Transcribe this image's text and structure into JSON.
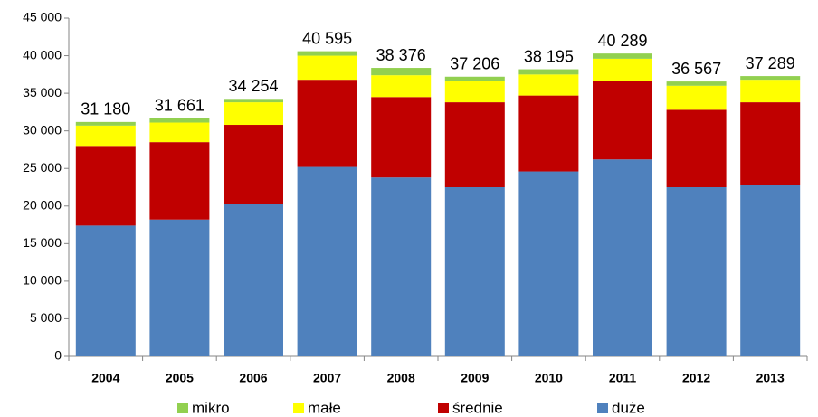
{
  "chart_data": {
    "type": "stacked_bar",
    "categories": [
      "2004",
      "2005",
      "2006",
      "2007",
      "2008",
      "2009",
      "2010",
      "2011",
      "2012",
      "2013"
    ],
    "series": [
      {
        "name": "duże",
        "color": "#4f81bd",
        "values": [
          17400,
          18200,
          20300,
          25200,
          23800,
          22500,
          24600,
          26200,
          22500,
          22800
        ]
      },
      {
        "name": "średnie",
        "color": "#c00000",
        "values": [
          10600,
          10300,
          10500,
          11600,
          10700,
          11300,
          10100,
          10400,
          10300,
          11000
        ]
      },
      {
        "name": "małe",
        "color": "#ffff00",
        "values": [
          2700,
          2600,
          3000,
          3200,
          2900,
          2800,
          2800,
          3000,
          3200,
          3000
        ]
      },
      {
        "name": "mikro",
        "color": "#92d050",
        "values": [
          480,
          561,
          454,
          595,
          976,
          606,
          695,
          689,
          567,
          489
        ]
      }
    ],
    "totals": [
      31180,
      31661,
      34254,
      40595,
      38376,
      37206,
      38195,
      40289,
      36567,
      37289
    ],
    "total_labels": [
      "31 180",
      "31 661",
      "34 254",
      "40 595",
      "38 376",
      "37 206",
      "38 195",
      "40 289",
      "36 567",
      "37 289"
    ],
    "ylim": [
      0,
      45000
    ],
    "yticks": [
      0,
      {
        "value": 5000,
        "label": "5 000"
      },
      {
        "value": 10000,
        "label": "10 000"
      },
      {
        "value": 15000,
        "label": "15 000"
      },
      {
        "value": 20000,
        "label": "20 000"
      },
      {
        "value": 25000,
        "label": "25 000"
      },
      {
        "value": 30000,
        "label": "30 000"
      },
      {
        "value": 35000,
        "label": "35 000"
      },
      {
        "value": 40000,
        "label": "40 000"
      },
      {
        "value": 45000,
        "label": "45 000"
      }
    ],
    "legend": "bottom"
  }
}
